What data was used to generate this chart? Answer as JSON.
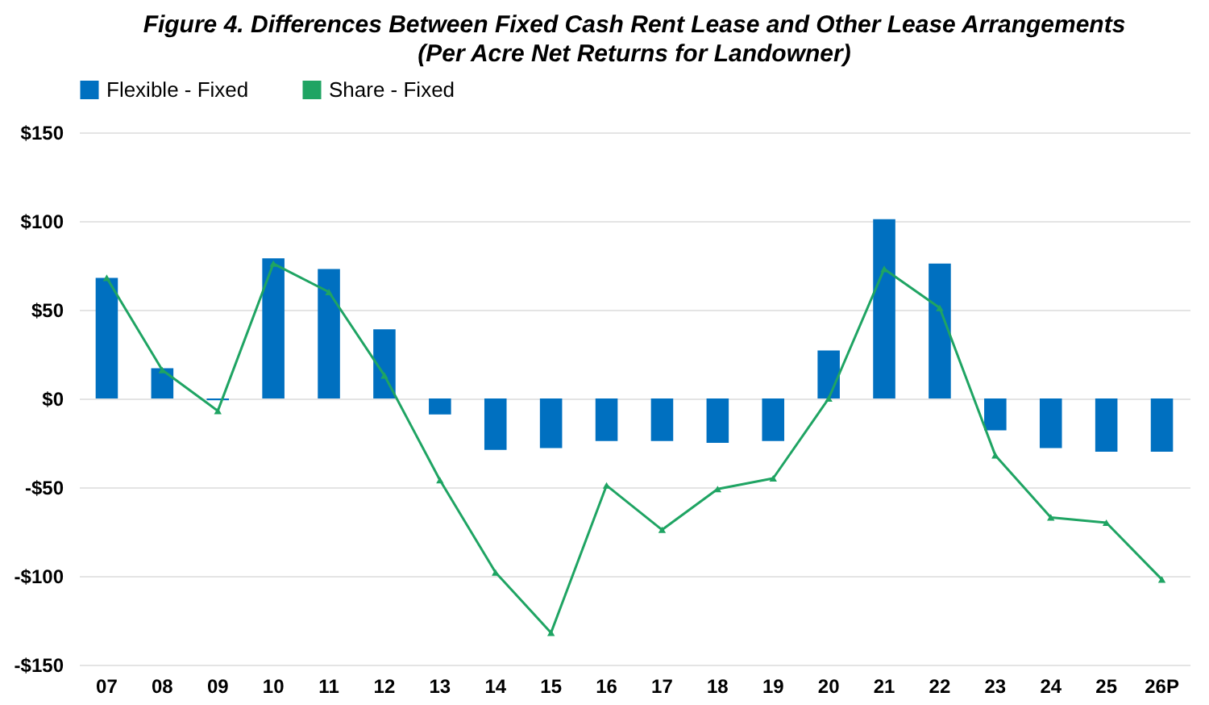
{
  "chart_data": {
    "type": "bar",
    "title": "Figure 4. Differences Between Fixed Cash Rent Lease and Other Lease Arrangements",
    "subtitle": "(Per Acre Net Returns for Landowner)",
    "categories": [
      "07",
      "08",
      "09",
      "10",
      "11",
      "12",
      "13",
      "14",
      "15",
      "16",
      "17",
      "18",
      "19",
      "20",
      "21",
      "22",
      "23",
      "24",
      "25",
      "26P"
    ],
    "series": [
      {
        "name": "Flexible - Fixed",
        "color": "#0070c0",
        "values": [
          68,
          17,
          -1,
          79,
          73,
          39,
          -9,
          -29,
          -28,
          -24,
          -24,
          -25,
          -24,
          27,
          101,
          76,
          -18,
          -28,
          -30,
          -30
        ]
      },
      {
        "name": "Share - Fixed",
        "type": "line",
        "color": "#1fa463",
        "marker": "triangle",
        "values": [
          68,
          16,
          -7,
          76,
          60,
          13,
          -46,
          -98,
          -132,
          -49,
          -74,
          -51,
          -45,
          0,
          73,
          51,
          -32,
          -67,
          -70,
          -102
        ]
      }
    ],
    "ylim": [
      -150,
      150
    ],
    "yticks": [
      {
        "value": -150,
        "label": "-$150"
      },
      {
        "value": -100,
        "label": "-$100"
      },
      {
        "value": -50,
        "label": "-$50"
      },
      {
        "value": 0,
        "label": "$0"
      },
      {
        "value": 50,
        "label": "$50"
      },
      {
        "value": 100,
        "label": "$100"
      },
      {
        "value": 150,
        "label": "$150"
      }
    ],
    "grid": "y",
    "legend": "top"
  }
}
